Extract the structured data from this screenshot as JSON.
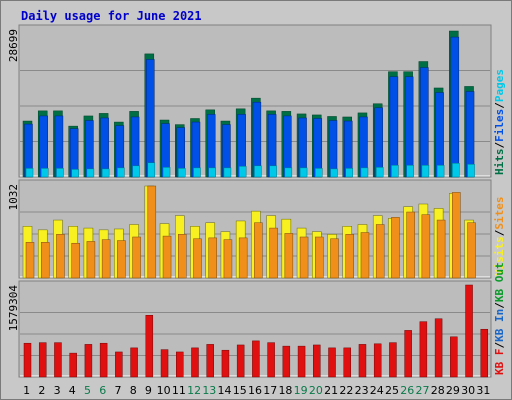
{
  "title": "Daily usage for June 2021",
  "colors": {
    "background": "#c8c8c8",
    "panel": "#bcbcbc",
    "title": "#0000cc",
    "hits": "#006f45",
    "files": "#0050e8",
    "pages": "#00c8e8",
    "visits": "#f8f020",
    "sites": "#f0901a",
    "kbin": "#1866c8",
    "kbout": "#0a9a2a",
    "kbf": "#e01010",
    "weekend_label": "#0a7a4a"
  },
  "chart_data": [
    {
      "type": "bar",
      "panel": "hits-files-pages",
      "ymax_label": "28699",
      "ylim": [
        0,
        28699
      ],
      "legend": [
        {
          "text": "Hits",
          "color": "#006f45"
        },
        {
          "text": "Files",
          "color": "#0050e8"
        },
        {
          "text": "Pages",
          "color": "#00c8e8"
        }
      ],
      "series": [
        {
          "name": "Hits",
          "values": [
            11000,
            13000,
            13000,
            10000,
            12000,
            12500,
            10800,
            12900,
            24200,
            11200,
            10300,
            11500,
            13200,
            11000,
            13400,
            15500,
            13000,
            12900,
            12400,
            12200,
            11900,
            11800,
            12600,
            14400,
            20700,
            20700,
            22700,
            17500,
            28699,
            17800,
            0
          ]
        },
        {
          "name": "Files",
          "values": [
            10400,
            12000,
            12000,
            9500,
            11100,
            11600,
            10100,
            11800,
            23100,
            10500,
            9700,
            10800,
            12300,
            10300,
            12300,
            14700,
            12300,
            12000,
            11600,
            11500,
            11100,
            11000,
            11800,
            13600,
            19700,
            19700,
            21500,
            16600,
            27500,
            16800,
            0
          ]
        },
        {
          "name": "Pages",
          "values": [
            1700,
            1700,
            1700,
            1500,
            1600,
            1600,
            1800,
            2200,
            2800,
            1900,
            1700,
            1800,
            1800,
            1800,
            2100,
            2200,
            2200,
            1800,
            1800,
            1700,
            1600,
            1700,
            1800,
            1900,
            2300,
            2300,
            2300,
            2300,
            2700,
            2500,
            0
          ]
        }
      ]
    },
    {
      "type": "bar",
      "panel": "visits-sites",
      "ymax_label": "1032",
      "ylim": [
        0,
        1032
      ],
      "legend": [
        {
          "text": "Visits",
          "color": "#f8f020"
        },
        {
          "text": "Sites",
          "color": "#f0901a"
        }
      ],
      "series": [
        {
          "name": "Visits",
          "values": [
            580,
            540,
            650,
            580,
            560,
            540,
            550,
            600,
            1032,
            610,
            700,
            580,
            620,
            520,
            640,
            750,
            700,
            660,
            560,
            520,
            490,
            580,
            600,
            700,
            670,
            800,
            830,
            780,
            950,
            650,
            0
          ]
        },
        {
          "name": "Sites",
          "values": [
            400,
            400,
            490,
            390,
            410,
            430,
            420,
            460,
            1032,
            470,
            490,
            440,
            450,
            430,
            450,
            620,
            560,
            500,
            460,
            460,
            440,
            490,
            510,
            600,
            680,
            740,
            710,
            650,
            960,
            620,
            0
          ]
        }
      ]
    },
    {
      "type": "bar",
      "panel": "kbytes",
      "ymax_label": "1579304",
      "ylim": [
        0,
        1579304
      ],
      "legend": [
        {
          "text": "KB F",
          "color": "#e01010"
        },
        {
          "text": "KB In",
          "color": "#1866c8"
        },
        {
          "text": "KB Out",
          "color": "#0a9a2a"
        }
      ],
      "series": [
        {
          "name": "KB F",
          "values": [
            580000,
            590000,
            590000,
            410000,
            560000,
            580000,
            430000,
            500000,
            1060000,
            470000,
            430000,
            500000,
            560000,
            460000,
            550000,
            620000,
            590000,
            530000,
            530000,
            550000,
            500000,
            500000,
            560000,
            570000,
            590000,
            800000,
            950000,
            1000000,
            690000,
            1579304,
            820000
          ]
        }
      ]
    }
  ],
  "x_labels": [
    "1",
    "2",
    "3",
    "4",
    "5",
    "6",
    "7",
    "8",
    "9",
    "10",
    "11",
    "12",
    "13",
    "14",
    "15",
    "16",
    "17",
    "18",
    "19",
    "20",
    "21",
    "22",
    "23",
    "24",
    "25",
    "26",
    "27",
    "28",
    "29",
    "30",
    "31"
  ],
  "weekend_days": [
    "5",
    "6",
    "12",
    "13",
    "19",
    "20",
    "26",
    "27"
  ]
}
